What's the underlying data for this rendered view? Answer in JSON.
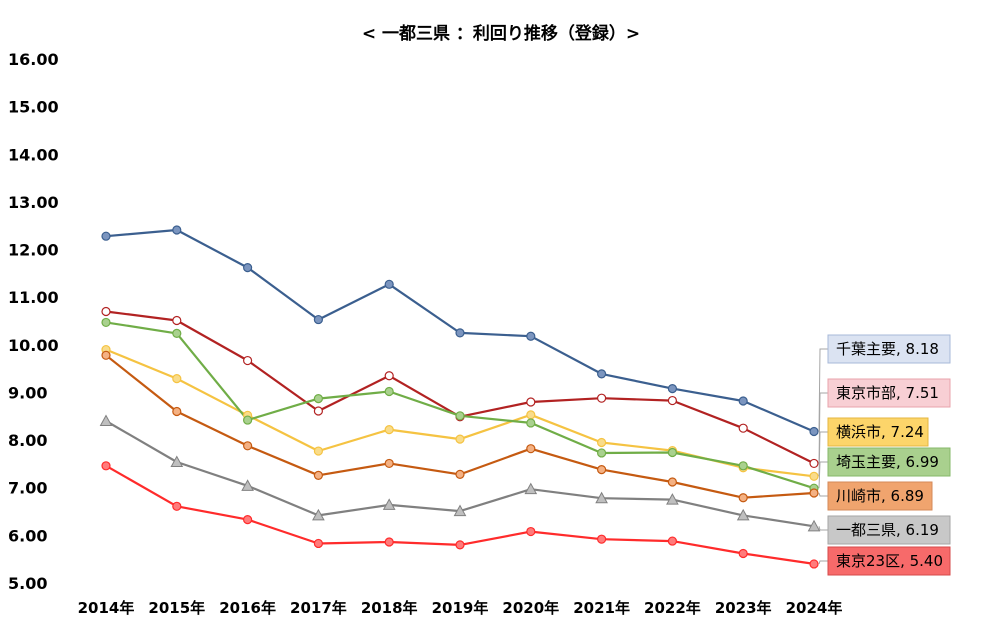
{
  "chart_data": {
    "type": "line",
    "title": "< 一都三県 ：利回り推移（登録）>",
    "xlabel": "",
    "ylabel": "",
    "ylim": [
      5.0,
      16.0
    ],
    "yticks": [
      "5.00",
      "6.00",
      "7.00",
      "8.00",
      "9.00",
      "10.00",
      "11.00",
      "12.00",
      "13.00",
      "14.00",
      "15.00",
      "16.00"
    ],
    "categories": [
      "2014年",
      "2015年",
      "2016年",
      "2017年",
      "2018年",
      "2019年",
      "2020年",
      "2021年",
      "2022年",
      "2023年",
      "2024年"
    ],
    "grid": false,
    "series": [
      {
        "name": "千葉主要",
        "label": "千葉主要, 8.18",
        "color": "#3b5f8f",
        "marker": "circle",
        "marker_fill": "#7b95bf",
        "label_bg": "#dbe3f2",
        "label_border": "#a7b8d8",
        "values": [
          12.28,
          12.41,
          11.62,
          10.53,
          11.27,
          10.25,
          10.18,
          9.39,
          9.08,
          8.82,
          8.18
        ]
      },
      {
        "name": "東京市部",
        "label": "東京市部, 7.51",
        "color": "#b22222",
        "marker": "circle-open",
        "marker_fill": "#ffffff",
        "label_bg": "#f8cfd4",
        "label_border": "#e8a3ab",
        "values": [
          10.7,
          10.51,
          9.67,
          8.61,
          9.35,
          8.49,
          8.8,
          8.88,
          8.83,
          8.25,
          7.51
        ]
      },
      {
        "name": "横浜市",
        "label": "横浜市, 7.24",
        "color": "#f5c342",
        "marker": "circle",
        "marker_fill": "#f9dc8a",
        "label_bg": "#fcd56a",
        "label_border": "#e4b640",
        "values": [
          9.9,
          9.29,
          8.52,
          7.77,
          8.22,
          8.02,
          8.53,
          7.95,
          7.78,
          7.42,
          7.24
        ]
      },
      {
        "name": "埼玉主要",
        "label": "埼玉主要, 6.99",
        "color": "#70ad47",
        "marker": "circle",
        "marker_fill": "#a9d18e",
        "label_bg": "#a9d08e",
        "label_border": "#86b86a",
        "values": [
          10.47,
          10.24,
          8.42,
          8.87,
          9.02,
          8.51,
          8.36,
          7.73,
          7.74,
          7.46,
          6.99
        ]
      },
      {
        "name": "川崎市",
        "label": "川崎市, 6.89",
        "color": "#c55a11",
        "marker": "circle",
        "marker_fill": "#f4b183",
        "label_bg": "#f0a46e",
        "label_border": "#d48a58",
        "values": [
          9.78,
          8.6,
          7.88,
          7.26,
          7.51,
          7.28,
          7.82,
          7.38,
          7.12,
          6.79,
          6.89
        ]
      },
      {
        "name": "一都三県",
        "label": "一都三県, 6.19",
        "color": "#808080",
        "marker": "triangle",
        "marker_fill": "#bfbfbf",
        "label_bg": "#c8c8c8",
        "label_border": "#a6a6a6",
        "values": [
          8.4,
          7.54,
          7.04,
          6.42,
          6.64,
          6.51,
          6.97,
          6.78,
          6.75,
          6.42,
          6.19
        ]
      },
      {
        "name": "東京23区",
        "label": "東京23区, 5.40",
        "color": "#ff2b2b",
        "marker": "circle",
        "marker_fill": "#ff7b7b",
        "label_bg": "#f76a6a",
        "label_border": "#d44a4a",
        "values": [
          7.46,
          6.61,
          6.33,
          5.83,
          5.86,
          5.8,
          6.08,
          5.92,
          5.88,
          5.62,
          5.4
        ]
      }
    ]
  }
}
